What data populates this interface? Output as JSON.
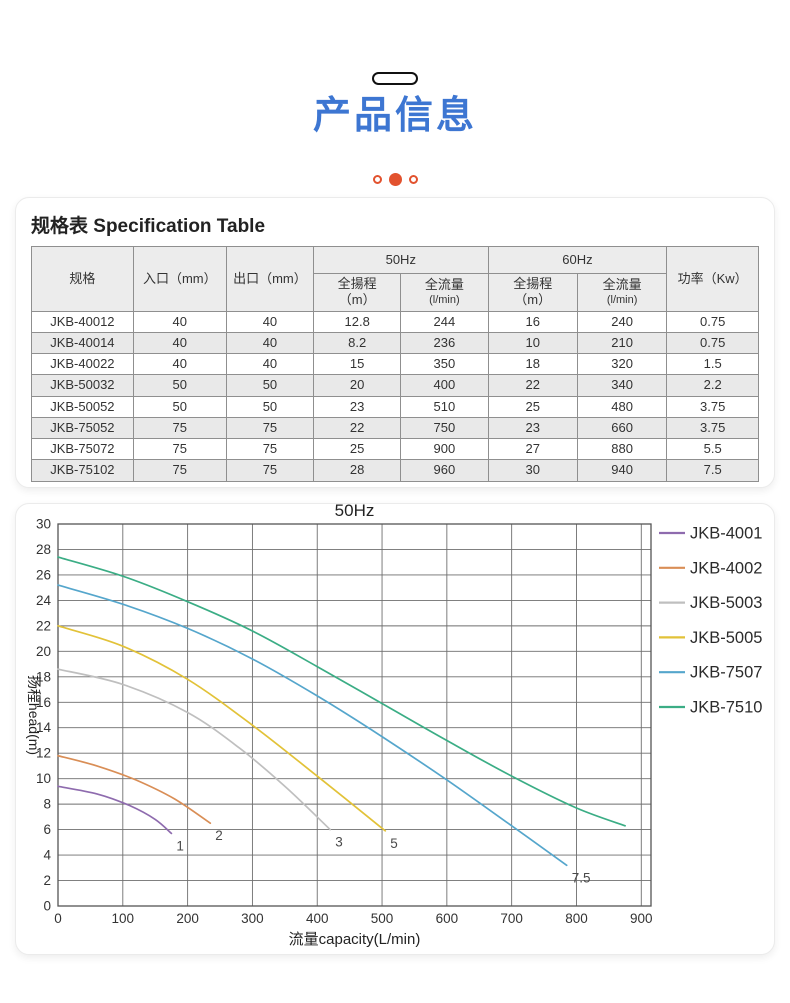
{
  "header": {
    "title": "产品信息",
    "title_color": "#3D76D2",
    "accent_color": "#E2522E"
  },
  "spec_table": {
    "heading": "规格表 Specification Table",
    "header": {
      "model": "规格",
      "inlet": "入口（mm）",
      "outlet": "出口（mm）",
      "freq50": "50Hz",
      "freq60": "60Hz",
      "power": "功率（Kw）",
      "head_label": "全揚程",
      "head_unit": "（m）",
      "flow_label": "全流量",
      "flow_unit": "(l/min)"
    },
    "rows": [
      [
        "JKB-40012",
        "40",
        "40",
        "12.8",
        "244",
        "16",
        "240",
        "0.75"
      ],
      [
        "JKB-40014",
        "40",
        "40",
        "8.2",
        "236",
        "10",
        "210",
        "0.75"
      ],
      [
        "JKB-40022",
        "40",
        "40",
        "15",
        "350",
        "18",
        "320",
        "1.5"
      ],
      [
        "JKB-50032",
        "50",
        "50",
        "20",
        "400",
        "22",
        "340",
        "2.2"
      ],
      [
        "JKB-50052",
        "50",
        "50",
        "23",
        "510",
        "25",
        "480",
        "3.75"
      ],
      [
        "JKB-75052",
        "75",
        "75",
        "22",
        "750",
        "23",
        "660",
        "3.75"
      ],
      [
        "JKB-75072",
        "75",
        "75",
        "25",
        "900",
        "27",
        "880",
        "5.5"
      ],
      [
        "JKB-75102",
        "75",
        "75",
        "28",
        "960",
        "30",
        "940",
        "7.5"
      ]
    ]
  },
  "chart_data": {
    "type": "line",
    "title": "50Hz",
    "xlabel": "流量capacity(L/min)",
    "ylabel": "扬程head(m)",
    "xlim": [
      0,
      915
    ],
    "ylim": [
      0,
      30
    ],
    "x_ticks": [
      0,
      100,
      200,
      300,
      400,
      500,
      600,
      700,
      800,
      900
    ],
    "y_ticks": [
      0,
      2,
      4,
      6,
      8,
      10,
      12,
      14,
      16,
      18,
      20,
      22,
      24,
      26,
      28,
      30
    ],
    "grid": true,
    "grid_color": "#6e6e6e",
    "legend_position": "right",
    "series": [
      {
        "name": "JKB-4001",
        "color": "#8E6BAE",
        "end_label": "1",
        "points": [
          [
            0,
            9.4
          ],
          [
            60,
            8.8
          ],
          [
            110,
            7.9
          ],
          [
            150,
            6.8
          ],
          [
            175,
            5.7
          ]
        ]
      },
      {
        "name": "JKB-4002",
        "color": "#D98E56",
        "end_label": "2",
        "points": [
          [
            0,
            11.8
          ],
          [
            60,
            11.0
          ],
          [
            120,
            9.9
          ],
          [
            180,
            8.4
          ],
          [
            235,
            6.5
          ]
        ]
      },
      {
        "name": "JKB-5003",
        "color": "#BFBFBF",
        "end_label": "3",
        "points": [
          [
            0,
            18.6
          ],
          [
            100,
            17.4
          ],
          [
            200,
            15.2
          ],
          [
            280,
            12.4
          ],
          [
            350,
            9.4
          ],
          [
            420,
            6.0
          ]
        ]
      },
      {
        "name": "JKB-5005",
        "color": "#E2C238",
        "end_label": "5",
        "points": [
          [
            0,
            22.0
          ],
          [
            100,
            20.4
          ],
          [
            200,
            17.8
          ],
          [
            300,
            14.2
          ],
          [
            400,
            10.2
          ],
          [
            505,
            5.9
          ]
        ]
      },
      {
        "name": "JKB-7507",
        "color": "#55A6CC",
        "end_label": "7.5",
        "points": [
          [
            0,
            25.2
          ],
          [
            100,
            23.7
          ],
          [
            200,
            21.8
          ],
          [
            300,
            19.4
          ],
          [
            400,
            16.5
          ],
          [
            500,
            13.3
          ],
          [
            600,
            9.9
          ],
          [
            700,
            6.3
          ],
          [
            785,
            3.2
          ]
        ]
      },
      {
        "name": "JKB-7510",
        "color": "#3BAD85",
        "end_label": "",
        "points": [
          [
            0,
            27.4
          ],
          [
            100,
            25.9
          ],
          [
            200,
            23.9
          ],
          [
            300,
            21.6
          ],
          [
            400,
            18.8
          ],
          [
            500,
            15.9
          ],
          [
            600,
            13.0
          ],
          [
            700,
            10.2
          ],
          [
            800,
            7.7
          ],
          [
            875,
            6.3
          ]
        ]
      }
    ]
  }
}
